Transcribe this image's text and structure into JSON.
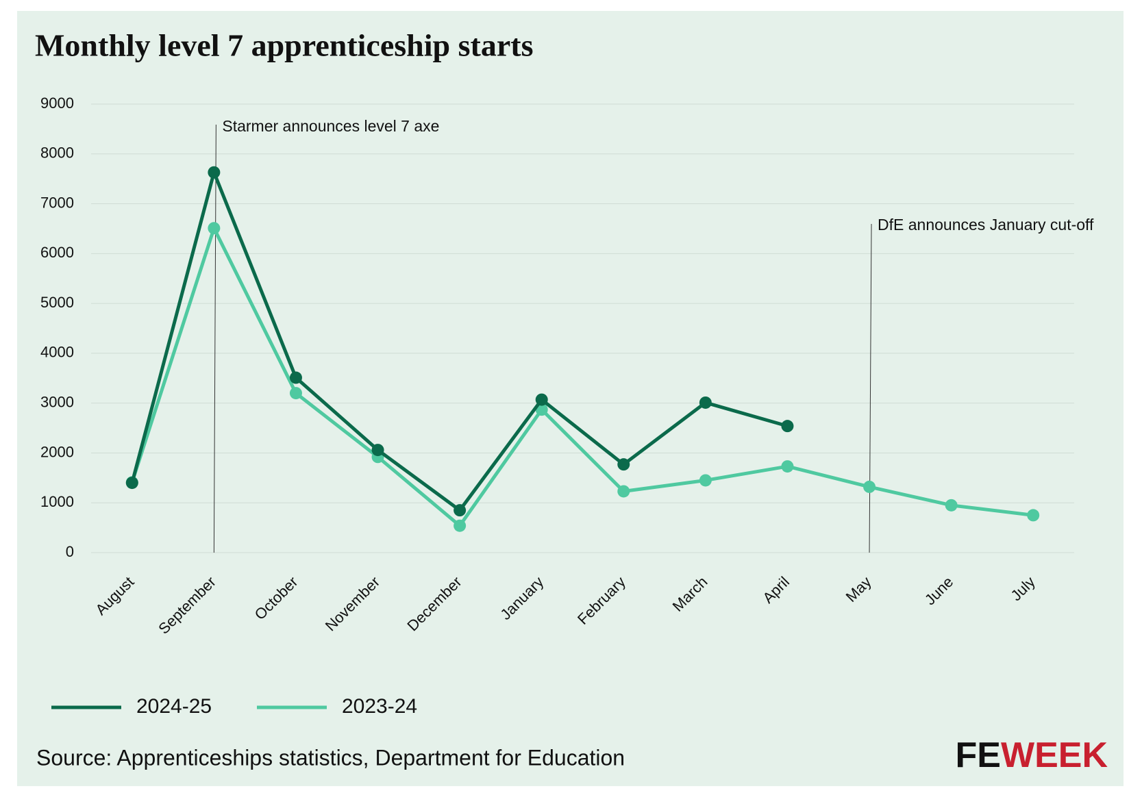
{
  "chart_data": {
    "type": "line",
    "title": "Monthly level 7 apprenticeship starts",
    "categories": [
      "August",
      "September",
      "October",
      "November",
      "December",
      "January",
      "February",
      "March",
      "April",
      "May",
      "June",
      "July"
    ],
    "series": [
      {
        "name": "2024-25",
        "color": "#0b6a4b",
        "values": [
          1400,
          7630,
          3510,
          2060,
          850,
          3070,
          1770,
          3010,
          2540,
          null,
          null,
          null
        ]
      },
      {
        "name": "2023-24",
        "color": "#4fc9a0",
        "values": [
          1410,
          6510,
          3200,
          1920,
          540,
          2870,
          1230,
          1450,
          1730,
          1320,
          950,
          750
        ]
      }
    ],
    "ylim": [
      0,
      9000
    ],
    "yticks": [
      0,
      1000,
      2000,
      3000,
      4000,
      5000,
      6000,
      7000,
      8000,
      9000
    ],
    "grid": true,
    "legend": "bottom-left",
    "annotations": [
      {
        "text": "Starmer announces level 7 axe",
        "x": "September"
      },
      {
        "text": "DfE announces January cut-off",
        "x": "May"
      }
    ],
    "source": "Source: Apprenticeships statistics, Department for Education"
  },
  "brand": {
    "fe": "FE",
    "week": "WEEK"
  }
}
